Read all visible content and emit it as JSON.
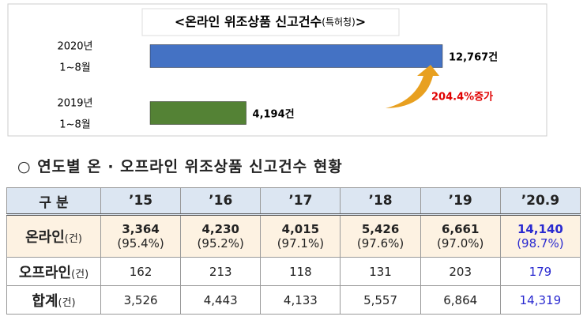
{
  "chart_data": {
    "type": "bar",
    "orientation": "horizontal",
    "title": "<온라인 위조상품 신고건수",
    "title_note": "(특허청)",
    "title_end": ">",
    "categories": [
      "2020년",
      "2019년"
    ],
    "category_notes": [
      "1~8월",
      "1~8월"
    ],
    "values": [
      12767,
      4194
    ],
    "value_labels": [
      "12,767건",
      "4,194건"
    ],
    "colors": [
      "#4472c4",
      "#548235"
    ],
    "annotation": "204.4%증가",
    "annotation_color": "#e00000",
    "arrow_color": "#e8a020"
  },
  "section_title": "○  연도별 온 · 오프라인 위조상품 신고건수 현황",
  "table": {
    "header": [
      "구  분",
      "’15",
      "’16",
      "’17",
      "’18",
      "’19",
      "’20.9"
    ],
    "highlight_color": "#2a2ad0",
    "rows": [
      {
        "label": "온라인",
        "unit": "(건)",
        "cells": [
          {
            "count": "3,364",
            "share": "(95.4%)"
          },
          {
            "count": "4,230",
            "share": "(95.2%)"
          },
          {
            "count": "4,015",
            "share": "(97.1%)"
          },
          {
            "count": "5,426",
            "share": "(97.6%)"
          },
          {
            "count": "6,661",
            "share": "(97.0%)"
          },
          {
            "count": "14,140",
            "share": "(98.7%)"
          }
        ]
      },
      {
        "label": "오프라인",
        "unit": "(건)",
        "cells": [
          {
            "count": "162"
          },
          {
            "count": "213"
          },
          {
            "count": "118"
          },
          {
            "count": "131"
          },
          {
            "count": "203"
          },
          {
            "count": "179"
          }
        ]
      },
      {
        "label": "합계",
        "unit": "(건)",
        "cells": [
          {
            "count": "3,526"
          },
          {
            "count": "4,443"
          },
          {
            "count": "4,133"
          },
          {
            "count": "5,557"
          },
          {
            "count": "6,864"
          },
          {
            "count": "14,319"
          }
        ]
      }
    ]
  }
}
